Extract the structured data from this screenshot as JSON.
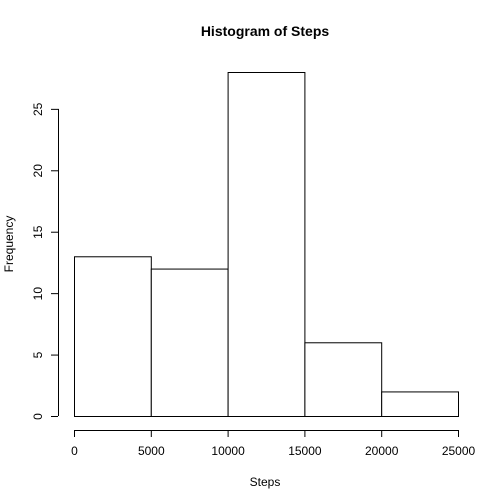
{
  "chart_data": {
    "type": "bar",
    "title": "Histogram of Steps",
    "xlabel": "Steps",
    "ylabel": "Frequency",
    "bins": [
      {
        "from": 0,
        "to": 5000,
        "count": 13
      },
      {
        "from": 5000,
        "to": 10000,
        "count": 12
      },
      {
        "from": 10000,
        "to": 15000,
        "count": 28
      },
      {
        "from": 15000,
        "to": 20000,
        "count": 6
      },
      {
        "from": 20000,
        "to": 25000,
        "count": 2
      }
    ],
    "xlim": [
      0,
      25000
    ],
    "ylim": [
      0,
      28
    ],
    "xticks": [
      "0",
      "5000",
      "10000",
      "15000",
      "20000",
      "25000"
    ],
    "yticks": [
      "0",
      "5",
      "10",
      "15",
      "20",
      "25"
    ],
    "grid": false,
    "legend": "none"
  }
}
